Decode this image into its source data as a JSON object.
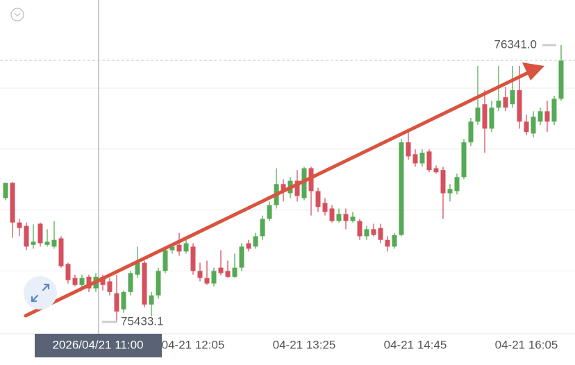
{
  "chart_data": {
    "type": "candlestick",
    "categories": [
      null,
      null,
      null,
      null,
      null,
      null,
      null,
      null,
      null,
      null,
      null,
      null,
      null,
      null,
      null,
      null,
      null,
      null,
      null,
      null,
      null,
      null,
      null,
      null,
      null,
      null,
      null,
      "04-21 12:05",
      null,
      null,
      null,
      null,
      null,
      null,
      null,
      null,
      null,
      null,
      null,
      null,
      null,
      null,
      null,
      "04-21 13:25",
      null,
      null,
      null,
      null,
      null,
      null,
      null,
      null,
      null,
      null,
      null,
      null,
      null,
      null,
      null,
      "04-21 14:45",
      null,
      null,
      null,
      null,
      null,
      null,
      null,
      null,
      null,
      null,
      null,
      null,
      null,
      null,
      null,
      "04-21 16:05",
      null,
      null,
      null,
      null,
      null
    ],
    "open": [
      75839,
      75889,
      75759,
      75748,
      75686,
      75755,
      75686,
      75680,
      75707,
      75623,
      75577,
      75554,
      75581,
      75543,
      75581,
      75566,
      75527,
      75474,
      75531,
      75588,
      75627,
      75490,
      75520,
      75600,
      75668,
      75686,
      75664,
      75680,
      75600,
      75577,
      75559,
      75611,
      75600,
      75581,
      75611,
      75691,
      75680,
      75714,
      75771,
      75816,
      75885,
      75855,
      75896,
      75839,
      75937,
      75862,
      75823,
      75805,
      75764,
      75787,
      75764,
      75764,
      75714,
      75737,
      75741,
      75702,
      75680,
      75718,
      76022,
      75983,
      75953,
      75992,
      75937,
      75931,
      75855,
      75862,
      75908,
      76022,
      76090,
      76147,
      76067,
      76136,
      76170,
      76147,
      76193,
      76090,
      76051,
      76090,
      76124,
      76090,
      76165
    ],
    "high": [
      75889,
      75892,
      75771,
      75759,
      75753,
      75759,
      75737,
      75764,
      75714,
      75627,
      75588,
      75588,
      75588,
      75593,
      75588,
      75577,
      75588,
      75536,
      75600,
      75680,
      75634,
      75531,
      75611,
      75680,
      75691,
      75725,
      75702,
      75691,
      75627,
      75634,
      75611,
      75668,
      75634,
      75657,
      75691,
      75702,
      75725,
      75782,
      75828,
      75937,
      75901,
      75908,
      75931,
      75942,
      75942,
      75873,
      75839,
      75816,
      75805,
      75805,
      75794,
      75771,
      75748,
      75755,
      75755,
      75714,
      75725,
      76033,
      76056,
      75999,
      75999,
      75999,
      75946,
      75942,
      75885,
      75919,
      76033,
      76102,
      76273,
      76193,
      76159,
      76273,
      76204,
      76273,
      76273,
      76113,
      76124,
      76136,
      76159,
      76175,
      76341.0
    ],
    "low": [
      75832,
      75709,
      75714,
      75668,
      75673,
      75680,
      75680,
      75673,
      75611,
      75559,
      75550,
      75543,
      75531,
      75531,
      75536,
      75520,
      75433.1,
      75463,
      75520,
      75577,
      75481,
      75451,
      75509,
      75593,
      75657,
      75650,
      75657,
      75588,
      75566,
      75554,
      75550,
      75586,
      75577,
      75577,
      75600,
      75664,
      75673,
      75702,
      75764,
      75805,
      75828,
      75839,
      75828,
      75832,
      75782,
      75794,
      75782,
      75759,
      75759,
      75737,
      75759,
      75702,
      75702,
      75714,
      75691,
      75664,
      75673,
      75714,
      75965,
      75942,
      75942,
      75924,
      75919,
      75771,
      75828,
      75851,
      75901,
      76010,
      76079,
      75988,
      76056,
      76124,
      76124,
      76136,
      76067,
      76045,
      76038,
      76079,
      76056,
      76079,
      76159
    ],
    "close": [
      75889,
      75759,
      75741,
      75680,
      75696,
      75691,
      75696,
      75702,
      75616,
      75570,
      75554,
      75577,
      75543,
      75581,
      75554,
      75531,
      75467,
      75531,
      75593,
      75627,
      75490,
      75520,
      75600,
      75668,
      75680,
      75664,
      75691,
      75600,
      75577,
      75559,
      75600,
      75593,
      75581,
      75611,
      75680,
      75673,
      75714,
      75771,
      75816,
      75885,
      75862,
      75896,
      75846,
      75937,
      75862,
      75810,
      75794,
      75764,
      75787,
      75764,
      75778,
      75714,
      75737,
      75718,
      75702,
      75680,
      75718,
      76022,
      75976,
      75953,
      75988,
      75931,
      75924,
      75855,
      75869,
      75908,
      76022,
      76090,
      76136,
      76067,
      76136,
      76159,
      76136,
      76193,
      76090,
      76056,
      76106,
      76124,
      76090,
      76165,
      76291
    ],
    "up_color": "#55aa55",
    "down_color": "#d5505e",
    "ylim": [
      75394,
      76489
    ],
    "ygrid": [
      76200,
      76000,
      75800,
      75600
    ],
    "high_marker": {
      "value": 76341.0,
      "label": "76341.0"
    },
    "low_marker": {
      "value": 75433.1,
      "label": "75433.1"
    },
    "crosshair_label": "2026/04/21 11:00"
  }
}
